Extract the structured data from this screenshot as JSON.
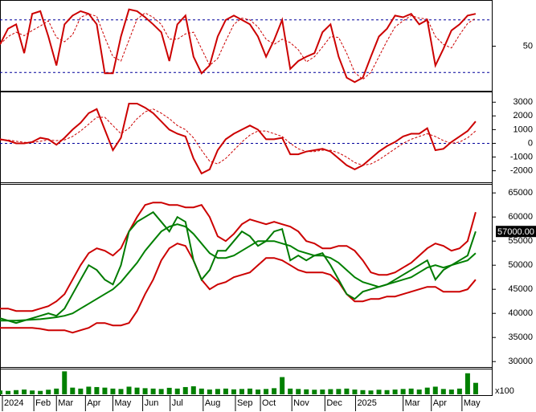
{
  "chart_data": [
    {
      "type": "line",
      "x": [
        0,
        1,
        2,
        3,
        4,
        5,
        6,
        7,
        8,
        9,
        10,
        11,
        12,
        13,
        14,
        15,
        16,
        17,
        18,
        19,
        20,
        21,
        22,
        23,
        24,
        25,
        26,
        27,
        28,
        29,
        30,
        31,
        32,
        33,
        34,
        35,
        36,
        37,
        38,
        39,
        40,
        41,
        42,
        43,
        44,
        45,
        46,
        47,
        48,
        49,
        50,
        51,
        52,
        53,
        54,
        55,
        56,
        57,
        58,
        59
      ],
      "xlim": [
        0,
        61
      ],
      "ylim": [
        0,
        100
      ],
      "yticks": [
        50
      ],
      "hlines": [
        20,
        80
      ],
      "hline_color": "#00009c",
      "series": [
        {
          "color": "#cc0000",
          "dashed": false,
          "values": [
            52,
            70,
            75,
            42,
            87,
            90,
            61,
            28,
            75,
            85,
            90,
            87,
            75,
            19,
            19,
            61,
            92,
            90,
            83,
            75,
            66,
            33,
            75,
            85,
            38,
            19,
            28,
            61,
            80,
            85,
            80,
            75,
            61,
            38,
            57,
            80,
            24,
            33,
            38,
            42,
            66,
            75,
            38,
            14,
            9,
            14,
            38,
            61,
            70,
            85,
            83,
            87,
            75,
            80,
            28,
            47,
            68,
            75,
            85,
            87
          ]
        },
        {
          "color": "#cc0000",
          "dashed": true,
          "values": [
            52,
            61,
            66,
            62,
            68,
            73,
            79,
            60,
            55,
            63,
            83,
            87,
            84,
            60,
            38,
            33,
            57,
            81,
            88,
            83,
            75,
            58,
            58,
            64,
            66,
            47,
            28,
            36,
            56,
            75,
            82,
            80,
            72,
            58,
            52,
            58,
            54,
            46,
            32,
            38,
            49,
            61,
            60,
            42,
            20,
            12,
            20,
            38,
            56,
            72,
            79,
            85,
            82,
            81,
            61,
            52,
            48,
            63,
            76,
            82
          ]
        }
      ]
    },
    {
      "type": "line",
      "x": [
        0,
        1,
        2,
        3,
        4,
        5,
        6,
        7,
        8,
        9,
        10,
        11,
        12,
        13,
        14,
        15,
        16,
        17,
        18,
        19,
        20,
        21,
        22,
        23,
        24,
        25,
        26,
        27,
        28,
        29,
        30,
        31,
        32,
        33,
        34,
        35,
        36,
        37,
        38,
        39,
        40,
        41,
        42,
        43,
        44,
        45,
        46,
        47,
        48,
        49,
        50,
        51,
        52,
        53,
        54,
        55,
        56,
        57,
        58,
        59
      ],
      "xlim": [
        0,
        61
      ],
      "ylim": [
        -2900,
        3600
      ],
      "yticks": [
        -2000,
        -1000,
        0,
        1000,
        2000,
        3000
      ],
      "hlines": [
        0
      ],
      "hline_color": "#00009c",
      "series": [
        {
          "color": "#cc0000",
          "dashed": false,
          "values": [
            300,
            200,
            0,
            0,
            100,
            400,
            300,
            -100,
            400,
            1000,
            1500,
            2200,
            2500,
            1000,
            -500,
            400,
            2900,
            2900,
            2600,
            2200,
            1600,
            1000,
            700,
            500,
            -1100,
            -2200,
            -1900,
            -500,
            300,
            700,
            1000,
            1300,
            1000,
            300,
            300,
            400,
            -800,
            -800,
            -600,
            -500,
            -400,
            -600,
            -1100,
            -1600,
            -1900,
            -1600,
            -1100,
            -600,
            -200,
            100,
            500,
            700,
            700,
            1100,
            -500,
            -400,
            100,
            500,
            900,
            1600
          ]
        },
        {
          "color": "#cc0000",
          "dashed": true,
          "values": [
            250,
            250,
            150,
            80,
            60,
            150,
            250,
            200,
            250,
            500,
            900,
            1400,
            1900,
            1900,
            1300,
            700,
            1100,
            1800,
            2300,
            2500,
            2200,
            1800,
            1300,
            1000,
            400,
            -500,
            -1300,
            -1500,
            -1100,
            -500,
            100,
            600,
            900,
            900,
            700,
            500,
            0,
            -400,
            -600,
            -600,
            -500,
            -500,
            -700,
            -1000,
            -1400,
            -1600,
            -1500,
            -1200,
            -800,
            -400,
            0,
            300,
            500,
            700,
            500,
            200,
            0,
            100,
            400,
            900
          ]
        }
      ]
    },
    {
      "type": "line",
      "x": [
        0,
        1,
        2,
        3,
        4,
        5,
        6,
        7,
        8,
        9,
        10,
        11,
        12,
        13,
        14,
        15,
        16,
        17,
        18,
        19,
        20,
        21,
        22,
        23,
        24,
        25,
        26,
        27,
        28,
        29,
        30,
        31,
        32,
        33,
        34,
        35,
        36,
        37,
        38,
        39,
        40,
        41,
        42,
        43,
        44,
        45,
        46,
        47,
        48,
        49,
        50,
        51,
        52,
        53,
        54,
        55,
        56,
        57,
        58,
        59
      ],
      "xlim": [
        0,
        61
      ],
      "ylim": [
        28700,
        66700
      ],
      "yticks": [
        30000,
        35000,
        40000,
        45000,
        50000,
        55000,
        60000,
        65000
      ],
      "series": [
        {
          "color": "#cc0000",
          "dashed": false,
          "values": [
            41000,
            41000,
            40500,
            40500,
            40500,
            41000,
            41500,
            42500,
            44000,
            47000,
            50000,
            52500,
            53500,
            53000,
            52000,
            53500,
            57000,
            60000,
            62500,
            63000,
            63000,
            62500,
            62500,
            62000,
            62000,
            62500,
            60000,
            56000,
            55000,
            56500,
            58500,
            59500,
            59000,
            58500,
            59000,
            58500,
            58000,
            57000,
            55000,
            54500,
            53500,
            53500,
            54000,
            54000,
            53000,
            51000,
            48500,
            48000,
            48000,
            48500,
            49500,
            50500,
            52000,
            53500,
            54500,
            54000,
            53000,
            53500,
            55000,
            61000
          ]
        },
        {
          "color": "#008000",
          "dashed": false,
          "values": [
            38500,
            38500,
            38500,
            38600,
            38700,
            38800,
            39000,
            39200,
            39500,
            40000,
            41000,
            42000,
            43000,
            44000,
            45000,
            46500,
            48500,
            50500,
            53000,
            55000,
            57000,
            58000,
            58500,
            58000,
            56500,
            54500,
            52500,
            51500,
            51500,
            52000,
            53000,
            54000,
            55000,
            55000,
            55000,
            54500,
            54000,
            53000,
            52500,
            52000,
            52000,
            51500,
            50500,
            49000,
            47500,
            46500,
            46000,
            45500,
            46000,
            46500,
            47000,
            47500,
            48500,
            49500,
            50000,
            49500,
            50000,
            50500,
            51000,
            52500
          ]
        },
        {
          "color": "#cc0000",
          "dashed": false,
          "values": [
            37000,
            37000,
            37000,
            37000,
            37000,
            36800,
            36500,
            36500,
            36500,
            36000,
            36500,
            37000,
            38000,
            38000,
            37500,
            37500,
            38000,
            40500,
            44000,
            47000,
            51000,
            53500,
            54500,
            54000,
            51000,
            47000,
            45000,
            46000,
            46500,
            47500,
            48000,
            48500,
            50000,
            51500,
            51500,
            51000,
            50000,
            49000,
            48500,
            48500,
            48500,
            48000,
            46500,
            44000,
            42500,
            42500,
            43000,
            43000,
            43500,
            43500,
            44000,
            44500,
            45000,
            45500,
            45500,
            44500,
            44500,
            44500,
            45000,
            47000
          ]
        },
        {
          "color": "#007a00",
          "dashed": false,
          "values": [
            39000,
            38500,
            38000,
            38500,
            39000,
            39500,
            40000,
            39500,
            41000,
            44000,
            47000,
            50000,
            49000,
            47000,
            46000,
            50000,
            57000,
            59000,
            60000,
            61000,
            59000,
            57000,
            60000,
            59000,
            51000,
            47000,
            49000,
            53000,
            53000,
            55000,
            57000,
            56000,
            54000,
            55000,
            57000,
            57500,
            51000,
            52000,
            51000,
            52000,
            52500,
            50000,
            47000,
            44000,
            43000,
            44500,
            45000,
            45500,
            46000,
            47000,
            48000,
            49000,
            50000,
            51000,
            47000,
            49000,
            50000,
            51000,
            52000,
            57000
          ],
          "last_label": "57000.00"
        }
      ]
    },
    {
      "type": "bar",
      "x": [
        0,
        1,
        2,
        3,
        4,
        5,
        6,
        7,
        8,
        9,
        10,
        11,
        12,
        13,
        14,
        15,
        16,
        17,
        18,
        19,
        20,
        21,
        22,
        23,
        24,
        25,
        26,
        27,
        28,
        29,
        30,
        31,
        32,
        33,
        34,
        35,
        36,
        37,
        38,
        39,
        40,
        41,
        42,
        43,
        44,
        45,
        46,
        47,
        48,
        49,
        50,
        51,
        52,
        53,
        54,
        55,
        56,
        57,
        58,
        59
      ],
      "xlim": [
        0,
        61
      ],
      "ylim": [
        0,
        130
      ],
      "unit_label": "x100",
      "color": "#008000",
      "values": [
        20,
        18,
        22,
        25,
        20,
        18,
        24,
        30,
        120,
        35,
        30,
        40,
        38,
        35,
        30,
        28,
        40,
        35,
        32,
        30,
        28,
        34,
        30,
        38,
        42,
        30,
        25,
        28,
        30,
        26,
        28,
        30,
        25,
        28,
        32,
        90,
        30,
        28,
        26,
        24,
        25,
        27,
        28,
        30,
        25,
        22,
        20,
        24,
        22,
        25,
        28,
        30,
        25,
        35,
        40,
        28,
        25,
        30,
        110,
        60
      ],
      "xticks": [
        {
          "value": 0.3,
          "label": "2024"
        },
        {
          "value": 4.2,
          "label": "Feb"
        },
        {
          "value": 7,
          "label": "Mar"
        },
        {
          "value": 10.6,
          "label": "Apr"
        },
        {
          "value": 14,
          "label": "May"
        },
        {
          "value": 17.7,
          "label": "Jun"
        },
        {
          "value": 21.1,
          "label": "Jul"
        },
        {
          "value": 25.2,
          "label": "Aug"
        },
        {
          "value": 29.2,
          "label": "Sep"
        },
        {
          "value": 32.3,
          "label": "Oct"
        },
        {
          "value": 36.2,
          "label": "Nov"
        },
        {
          "value": 40.3,
          "label": "Dec"
        },
        {
          "value": 44.1,
          "label": "2025"
        },
        {
          "value": 50,
          "label": "Mar"
        },
        {
          "value": 53.5,
          "label": "Apr"
        },
        {
          "value": 57.3,
          "label": "May"
        }
      ]
    }
  ]
}
